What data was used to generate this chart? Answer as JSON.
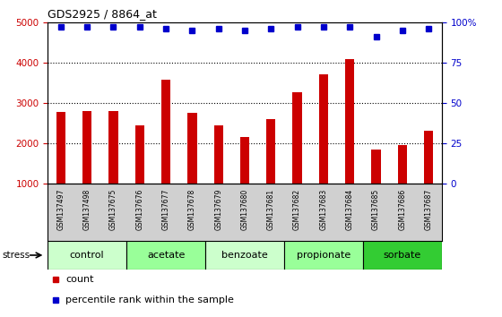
{
  "title": "GDS2925 / 8864_at",
  "samples": [
    "GSM137497",
    "GSM137498",
    "GSM137675",
    "GSM137676",
    "GSM137677",
    "GSM137678",
    "GSM137679",
    "GSM137680",
    "GSM137681",
    "GSM137682",
    "GSM137683",
    "GSM137684",
    "GSM137685",
    "GSM137686",
    "GSM137687"
  ],
  "counts": [
    2780,
    2810,
    2810,
    2450,
    3570,
    2750,
    2450,
    2170,
    2600,
    3270,
    3720,
    4080,
    1860,
    1970,
    2320
  ],
  "percentile_ranks": [
    97,
    97,
    97,
    97,
    96,
    95,
    96,
    95,
    96,
    97,
    97,
    97,
    91,
    95,
    96
  ],
  "bar_color": "#cc0000",
  "dot_color": "#0000cc",
  "ylim_left": [
    1000,
    5000
  ],
  "ylim_right": [
    0,
    100
  ],
  "yticks_left": [
    1000,
    2000,
    3000,
    4000,
    5000
  ],
  "yticks_right": [
    0,
    25,
    50,
    75,
    100
  ],
  "groups": [
    {
      "label": "control",
      "start": 0,
      "end": 3,
      "color": "#ccffcc"
    },
    {
      "label": "acetate",
      "start": 3,
      "end": 6,
      "color": "#99ff99"
    },
    {
      "label": "benzoate",
      "start": 6,
      "end": 9,
      "color": "#ccffcc"
    },
    {
      "label": "propionate",
      "start": 9,
      "end": 12,
      "color": "#99ff99"
    },
    {
      "label": "sorbate",
      "start": 12,
      "end": 15,
      "color": "#33cc33"
    }
  ],
  "stress_label": "stress",
  "legend_count_label": "count",
  "legend_pct_label": "percentile rank within the sample",
  "background_color": "#ffffff",
  "xticklabel_bg": "#d0d0d0",
  "grid_lines": [
    2000,
    3000,
    4000
  ],
  "bar_width": 0.35
}
